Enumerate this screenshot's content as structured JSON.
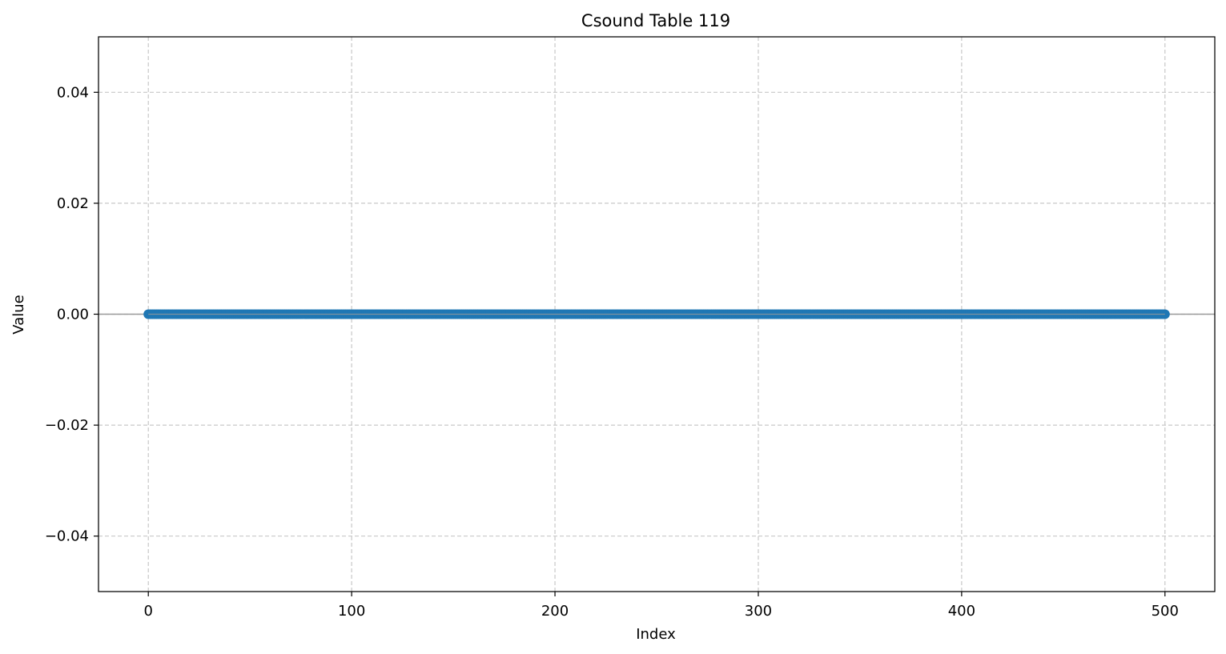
{
  "chart_data": {
    "type": "line",
    "title": "Csound Table 119",
    "xlabel": "Index",
    "ylabel": "Value",
    "xlim": [
      -24.5,
      524.5
    ],
    "ylim": [
      -0.05,
      0.05
    ],
    "xticks": [
      0,
      100,
      200,
      300,
      400,
      500
    ],
    "yticks": [
      0.04,
      0.02,
      0.0,
      -0.02,
      -0.04
    ],
    "ytick_labels": [
      "0.04",
      "0.02",
      "0.00",
      "−0.02",
      "−0.04"
    ],
    "xtick_labels": [
      "0",
      "100",
      "200",
      "300",
      "400",
      "500"
    ],
    "grid": true,
    "series": [
      {
        "index_start": 0,
        "index_end": 500,
        "constant_value": 0.0,
        "marker": "circle",
        "color": "#1f77b4"
      }
    ],
    "reference_line": {
      "y": 0.0,
      "color": "#999999"
    }
  }
}
